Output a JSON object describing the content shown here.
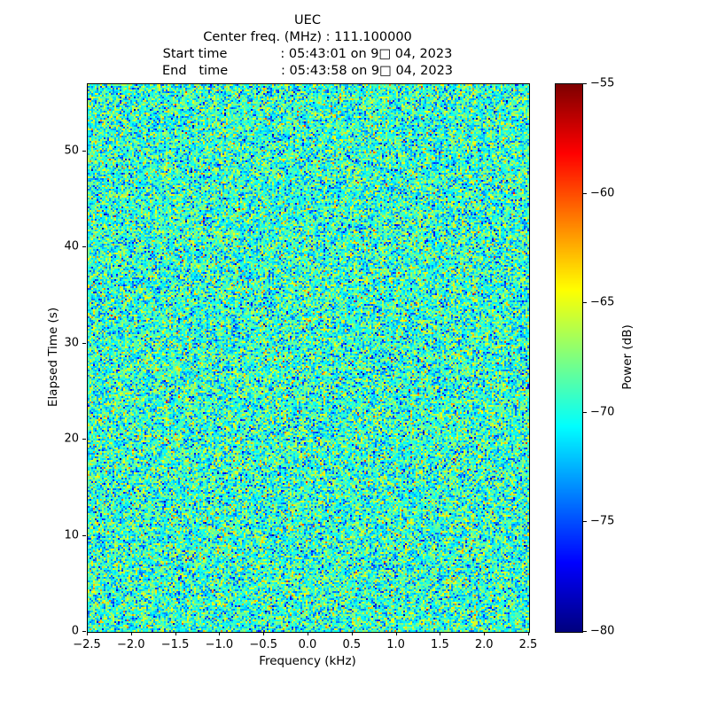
{
  "header": {
    "title": "UEC",
    "center_freq_line": "Center freq. (MHz) : 111.100000",
    "start_time_line": "Start time             : 05:43:01 on 9□ 04, 2023",
    "end_time_line": "End   time             : 05:43:58 on 9□ 04, 2023"
  },
  "chart_data": {
    "type": "heatmap",
    "title": "UEC",
    "subtitle_lines": [
      "Center freq. (MHz) : 111.100000",
      "Start time : 05:43:01 on 9□ 04, 2023",
      "End time : 05:43:58 on 9□ 04, 2023"
    ],
    "center_freq_mhz": "111.100000",
    "start_time": "05:43:01 on 9□ 04, 2023",
    "end_time": "05:43:58 on 9□ 04, 2023",
    "xlabel": "Frequency (kHz)",
    "ylabel": "Elapsed Time (s)",
    "colorbar_label": "Power (dB)",
    "xlim": [
      -2.5,
      2.5
    ],
    "ylim": [
      0,
      57
    ],
    "color_limits_db": [
      -80,
      -55
    ],
    "colormap": "jet",
    "grid": false,
    "legend": "colorbar-right",
    "xticks": {
      "values": [
        -2.5,
        -2.0,
        -1.5,
        -1.0,
        -0.5,
        0.0,
        0.5,
        1.0,
        1.5,
        2.0,
        2.5
      ],
      "labels": [
        "−2.5",
        "−2.0",
        "−1.5",
        "−1.0",
        "−0.5",
        "0.0",
        "0.5",
        "1.0",
        "1.5",
        "2.0",
        "2.5"
      ]
    },
    "yticks": {
      "values": [
        0,
        10,
        20,
        30,
        40,
        50
      ],
      "labels": [
        "0",
        "10",
        "20",
        "30",
        "40",
        "50"
      ]
    },
    "colorbar_ticks": {
      "values": [
        -55,
        -60,
        -65,
        -70,
        -75,
        -80
      ],
      "labels": [
        "−55",
        "−60",
        "−65",
        "−70",
        "−75",
        "−80"
      ]
    },
    "noise_model": {
      "description": "broadband noise floor, no visible signal",
      "distribution": "gaussian",
      "mean_db": -69.5,
      "std_db": 3.0,
      "seed": 20230904,
      "cols": 249,
      "rows": 309
    }
  }
}
